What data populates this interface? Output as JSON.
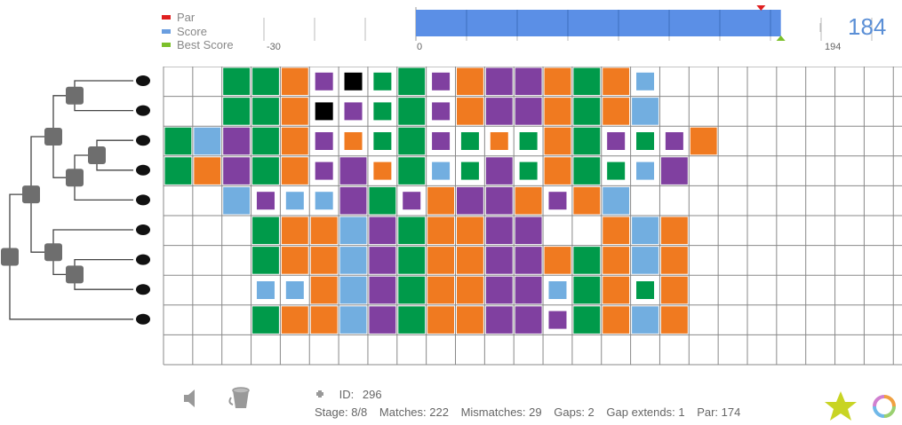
{
  "legend": {
    "items": [
      {
        "label": "Par",
        "color": "#e02020"
      },
      {
        "label": "Score",
        "color": "#6a9ee0"
      },
      {
        "label": "Best Score",
        "color": "#7cc02a"
      }
    ]
  },
  "score": {
    "min_label": "-30",
    "zero_label": "0",
    "max_label": "194",
    "min": -30,
    "max": 194,
    "value": 184,
    "par": 174,
    "best": 184,
    "display": "184"
  },
  "colors": {
    "G": "#009a4a",
    "O": "#f07a20",
    "P": "#8040a0",
    "B": "#72aee0"
  },
  "species": [
    {
      "icon": "human-icon"
    },
    {
      "icon": "mouse-icon"
    },
    {
      "icon": "chimp-icon"
    },
    {
      "icon": "monkey-icon"
    },
    {
      "icon": "rabbit-icon"
    },
    {
      "icon": "cow-icon"
    },
    {
      "icon": "horse-icon"
    },
    {
      "icon": "dog-icon"
    },
    {
      "icon": "bat-icon"
    }
  ],
  "grid": {
    "rows": [
      "..GGOpsgGpOPPOGOb.......",
      "..GGOspgGpOPPOGOB.......",
      "GBPGOpogGpgogOGpgpO.....",
      "GOPGOpPoGbgPgOGgbP......",
      "..BpbbPGpOPPOpOB........",
      "...GOOBPGOOPP..OBO......",
      "...GOOBPGOOPPOGOBO......",
      "...bbOBPGOOPPbGOgO......",
      "...GOOBPGOOPPpGOBO......",
      "........................"
    ]
  },
  "footer": {
    "id_label": "ID:",
    "id_value": "296",
    "stage": "Stage: 8/8",
    "matches": "Matches: 222",
    "mismatches": "Mismatches: 29",
    "gaps": "Gaps: 2",
    "gap_extends": "Gap extends: 1",
    "par": "Par: 174"
  }
}
